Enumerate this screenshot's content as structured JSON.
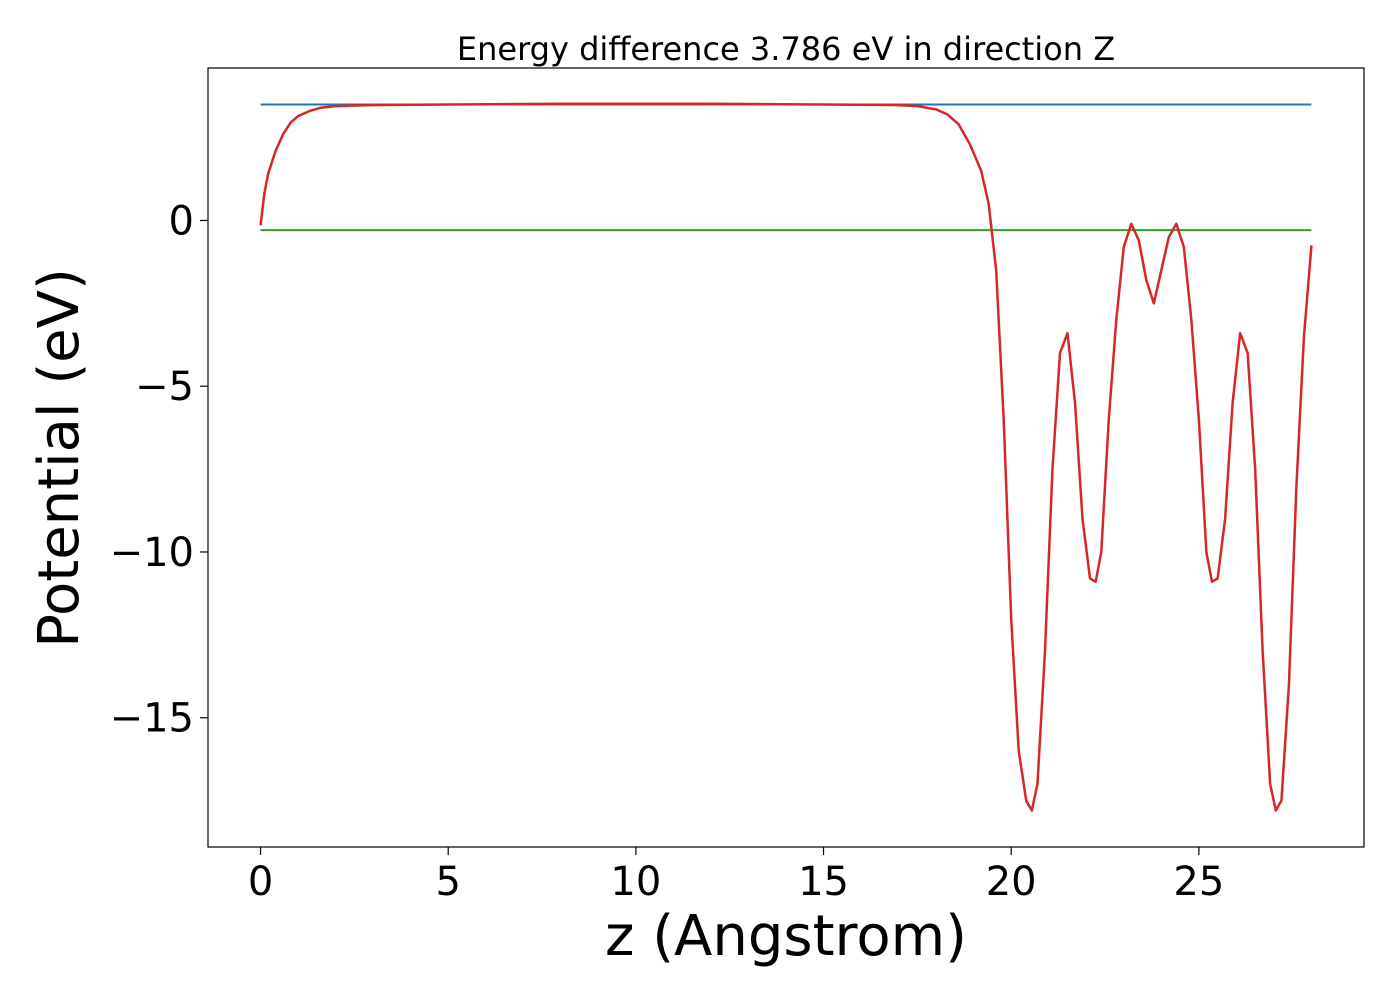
{
  "chart_data": {
    "type": "line",
    "title": "Energy difference 3.786 eV in direction Z",
    "xlabel": "z (Angstrom)",
    "ylabel": "Potential (eV)",
    "xlim": [
      -1.4,
      29.4
    ],
    "ylim": [
      -18.9,
      4.6
    ],
    "xticks": [
      0,
      5,
      10,
      15,
      20,
      25
    ],
    "xtick_labels": [
      "0",
      "5",
      "10",
      "15",
      "20",
      "25"
    ],
    "yticks": [
      0,
      -5,
      -10,
      -15
    ],
    "ytick_labels": [
      "0",
      "−5",
      "−10",
      "−15"
    ],
    "grid": false,
    "legend": "none",
    "series": [
      {
        "color": "#d62728",
        "x": [
          0,
          0.1,
          0.2,
          0.4,
          0.6,
          0.8,
          1.0,
          1.3,
          1.6,
          2.0,
          2.5,
          3,
          5,
          8,
          10,
          12,
          15,
          17,
          17.5,
          18,
          18.3,
          18.6,
          18.9,
          19.2,
          19.4,
          19.6,
          19.8,
          20.0,
          20.2,
          20.4,
          20.55,
          20.7,
          20.9,
          21.1,
          21.3,
          21.5,
          21.7,
          21.9,
          22.1,
          22.25,
          22.4,
          22.6,
          22.8,
          23.0,
          23.2,
          23.4,
          23.6,
          23.8,
          24.0,
          24.2,
          24.4,
          24.6,
          24.8,
          25.0,
          25.2,
          25.35,
          25.5,
          25.7,
          25.9,
          26.1,
          26.3,
          26.5,
          26.7,
          26.9,
          27.05,
          27.2,
          27.4,
          27.6,
          27.8,
          28.0
        ],
        "y": [
          -0.15,
          0.8,
          1.4,
          2.1,
          2.6,
          2.95,
          3.15,
          3.3,
          3.4,
          3.45,
          3.47,
          3.48,
          3.5,
          3.52,
          3.52,
          3.52,
          3.5,
          3.48,
          3.45,
          3.35,
          3.2,
          2.9,
          2.3,
          1.5,
          0.5,
          -1.5,
          -6,
          -12,
          -16,
          -17.5,
          -17.8,
          -17,
          -13,
          -7.5,
          -4,
          -3.4,
          -5.5,
          -9,
          -10.8,
          -10.9,
          -10,
          -6,
          -3,
          -0.8,
          -0.1,
          -0.6,
          -1.8,
          -2.5,
          -1.5,
          -0.5,
          -0.1,
          -0.8,
          -3,
          -6,
          -10,
          -10.9,
          -10.8,
          -9,
          -5.5,
          -3.4,
          -4,
          -7.5,
          -13,
          -17,
          -17.8,
          -17.5,
          -14,
          -8,
          -3.5,
          -0.75
        ]
      },
      {
        "color": "#1f77b4",
        "x": [
          0,
          28
        ],
        "y": [
          3.5,
          3.5
        ]
      },
      {
        "color": "#2ca02c",
        "x": [
          0,
          28
        ],
        "y": [
          -0.29,
          -0.29
        ]
      }
    ]
  }
}
